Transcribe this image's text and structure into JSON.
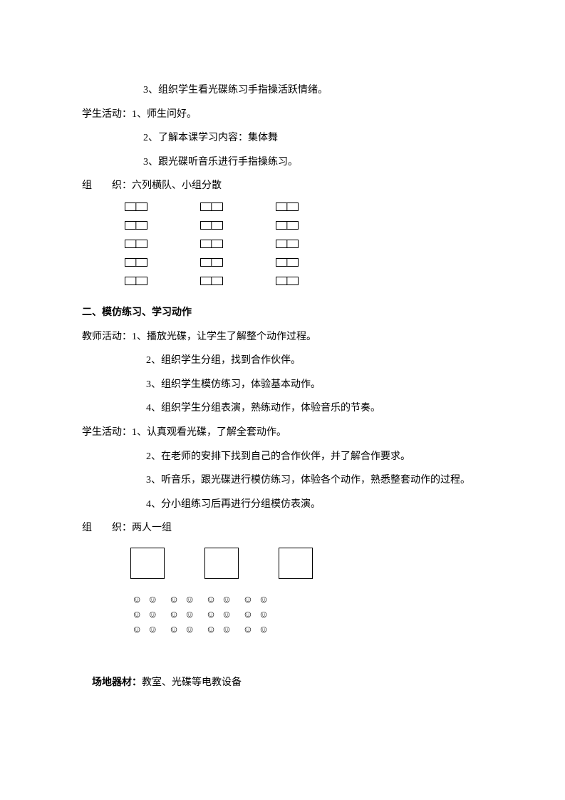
{
  "lines": {
    "l1": "3、组织学生看光碟练习手指操活跃情绪。",
    "l2": "学生活动：1、师生问好。",
    "l3": "2、了解本课学习内容：集体舞",
    "l4": "3、跟光碟听音乐进行手指操练习。",
    "l5": "组　　织：六列横队、小组分散",
    "section2": "二、模仿练习、学习动作",
    "t1": "教师活动：1、播放光碟，让学生了解整个动作过程。",
    "t2": "2、组织学生分组，找到合作伙伴。",
    "t3": "3、组织学生模仿练习，体验基本动作。",
    "t4": "4、组织学生分组表演，熟练动作，体验音乐的节奏。",
    "s1": "学生活动：1、认真观看光碟，了解全套动作。",
    "s2": "2、在老师的安排下找到自己的合作伙伴，并了解合作要求。",
    "s3": "3、听音乐，跟光碟进行模仿练习，体验各个动作，熟悉整套动作的过程。",
    "s4": "4、分小组练习后再进行分组模仿表演。",
    "org2": "组　　织：两人一组",
    "equip_label": "场地器材：",
    "equip_val": "教室、光碟等电教设备"
  },
  "diagram1": {
    "rows": 5,
    "cols": 3
  },
  "diagram2": {
    "cols": 3
  },
  "smileys": {
    "rows": 3,
    "groups": 4,
    "per_group": 2,
    "glyph": "☺"
  }
}
